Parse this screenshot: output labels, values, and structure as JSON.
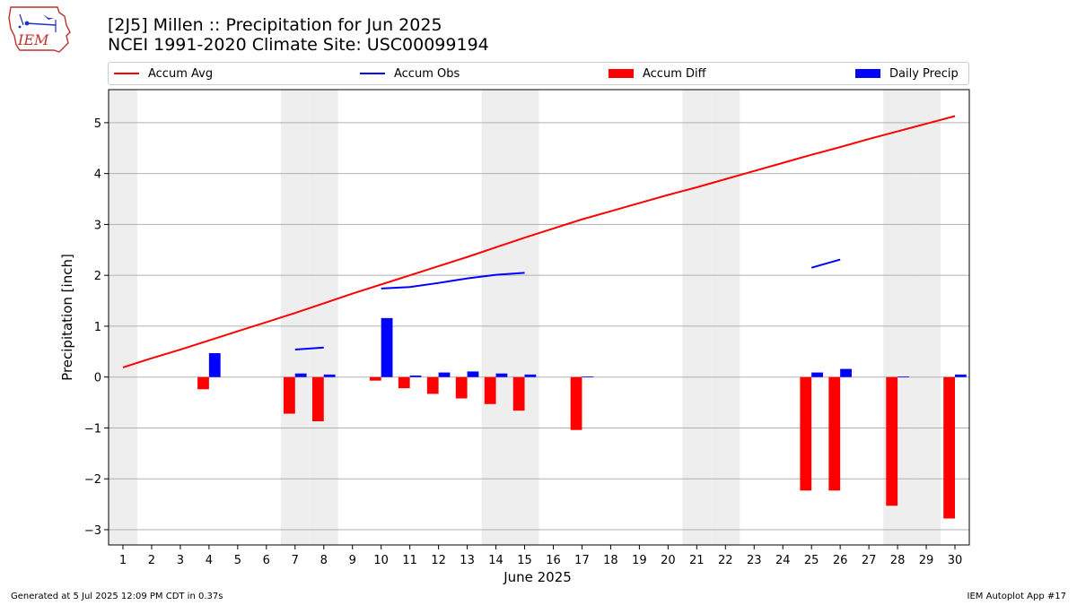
{
  "header": {
    "title_line1": "[2J5] Millen :: Precipitation for Jun 2025",
    "title_line2": "NCEI 1991-2020 Climate Site: USC00099194",
    "logo_text": "IEM"
  },
  "legend": {
    "accum_avg": "Accum Avg",
    "accum_obs": "Accum Obs",
    "accum_diff": "Accum Diff",
    "daily_precip": "Daily Precip"
  },
  "footer": {
    "generated": "Generated at 5 Jul 2025 12:09 PM CDT in 0.37s",
    "app": "IEM Autoplot App #17"
  },
  "colors": {
    "accum_avg": "#ff0000",
    "accum_obs": "#0000ff",
    "accum_diff": "#ff0000",
    "daily_precip": "#0000ff",
    "weekend_band": "#eeeeee",
    "grid": "#b0b0b0"
  },
  "chart_data": {
    "type": "bar",
    "xlabel": "June 2025",
    "ylabel": "Precipitation [inch]",
    "xlim": [
      0.5,
      30.5
    ],
    "ylim": [
      -3.3,
      5.65
    ],
    "yticks": [
      -3,
      -2,
      -1,
      0,
      1,
      2,
      3,
      4,
      5
    ],
    "ytick_labels": [
      "−3",
      "−2",
      "−1",
      "0",
      "1",
      "2",
      "3",
      "4",
      "5"
    ],
    "grid": "horizontal",
    "legend_position": "top",
    "days": [
      1,
      2,
      3,
      4,
      5,
      6,
      7,
      8,
      9,
      10,
      11,
      12,
      13,
      14,
      15,
      16,
      17,
      18,
      19,
      20,
      21,
      22,
      23,
      24,
      25,
      26,
      27,
      28,
      29,
      30
    ],
    "weekend_days": [
      1,
      7,
      8,
      14,
      15,
      21,
      22,
      28,
      29
    ],
    "series": [
      {
        "name": "Accum Avg",
        "kind": "line",
        "values": [
          0.19,
          0.37,
          0.54,
          0.72,
          0.9,
          1.08,
          1.26,
          1.45,
          1.64,
          1.82,
          2.0,
          2.18,
          2.36,
          2.55,
          2.74,
          2.92,
          3.1,
          3.26,
          3.42,
          3.58,
          3.73,
          3.89,
          4.05,
          4.21,
          4.37,
          4.52,
          4.68,
          4.83,
          4.98,
          5.13
        ]
      },
      {
        "name": "Accum Obs",
        "kind": "line",
        "values": [
          null,
          null,
          null,
          null,
          null,
          null,
          0.54,
          0.58,
          null,
          1.74,
          1.77,
          1.85,
          1.94,
          2.01,
          2.05,
          null,
          null,
          null,
          null,
          null,
          null,
          null,
          null,
          null,
          2.15,
          2.31,
          null,
          null,
          null,
          null
        ]
      },
      {
        "name": "Accum Diff",
        "kind": "bar",
        "values": [
          null,
          null,
          null,
          -0.24,
          null,
          null,
          -0.72,
          -0.87,
          null,
          -0.07,
          -0.22,
          -0.33,
          -0.42,
          -0.53,
          -0.66,
          null,
          -1.04,
          null,
          null,
          null,
          null,
          null,
          null,
          null,
          -2.23,
          -2.23,
          null,
          -2.53,
          null,
          -2.78
        ]
      },
      {
        "name": "Daily Precip",
        "kind": "bar",
        "values": [
          null,
          null,
          null,
          0.47,
          null,
          null,
          0.07,
          0.05,
          null,
          1.16,
          0.03,
          0.09,
          0.11,
          0.07,
          0.05,
          null,
          0.01,
          null,
          null,
          null,
          null,
          null,
          null,
          null,
          0.09,
          0.16,
          null,
          0.01,
          null,
          0.05
        ]
      }
    ]
  }
}
